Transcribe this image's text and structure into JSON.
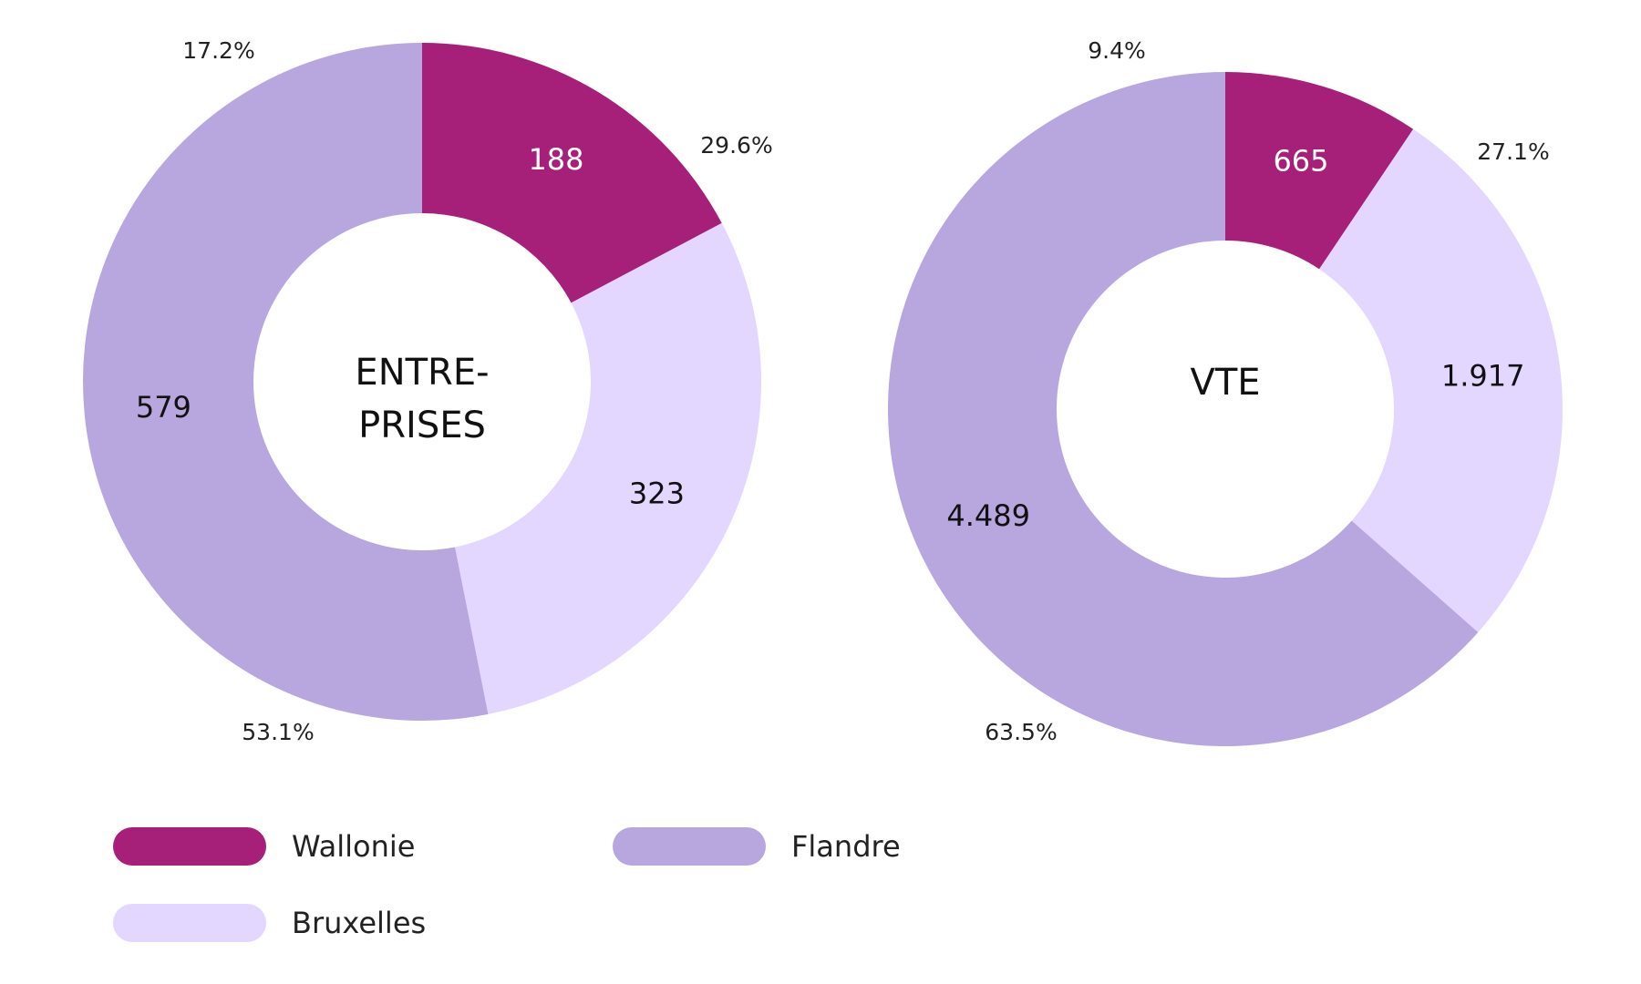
{
  "chart_data": [
    {
      "type": "pie",
      "center_label": [
        "ENTRE-",
        "PRISES"
      ],
      "categories": [
        "Wallonie",
        "Bruxelles",
        "Flandre"
      ],
      "values": [
        188,
        323,
        579
      ],
      "value_labels": [
        "188",
        "323",
        "579"
      ],
      "percentages": [
        "17.2%",
        "29.6%",
        "53.1%"
      ]
    },
    {
      "type": "pie",
      "center_label": [
        "VTE"
      ],
      "categories": [
        "Wallonie",
        "Bruxelles",
        "Flandre"
      ],
      "values": [
        665,
        1917,
        4489
      ],
      "value_labels": [
        "665",
        "1.917",
        "4.489"
      ],
      "percentages": [
        "9.4%",
        "27.1%",
        "63.5%"
      ]
    }
  ],
  "legend": [
    {
      "label": "Wallonie",
      "color": "#A6207A"
    },
    {
      "label": "Flandre",
      "color": "#B8A6DE"
    },
    {
      "label": "Bruxelles",
      "color": "#E4D7FF"
    }
  ],
  "colors": {
    "Wallonie": "#A6207A",
    "Bruxelles": "#E4D7FF",
    "Flandre": "#B8A6DE",
    "legend_wallonie": "#A6207A",
    "text_on_dark": "#ffffff",
    "text_on_light": "#111111"
  }
}
